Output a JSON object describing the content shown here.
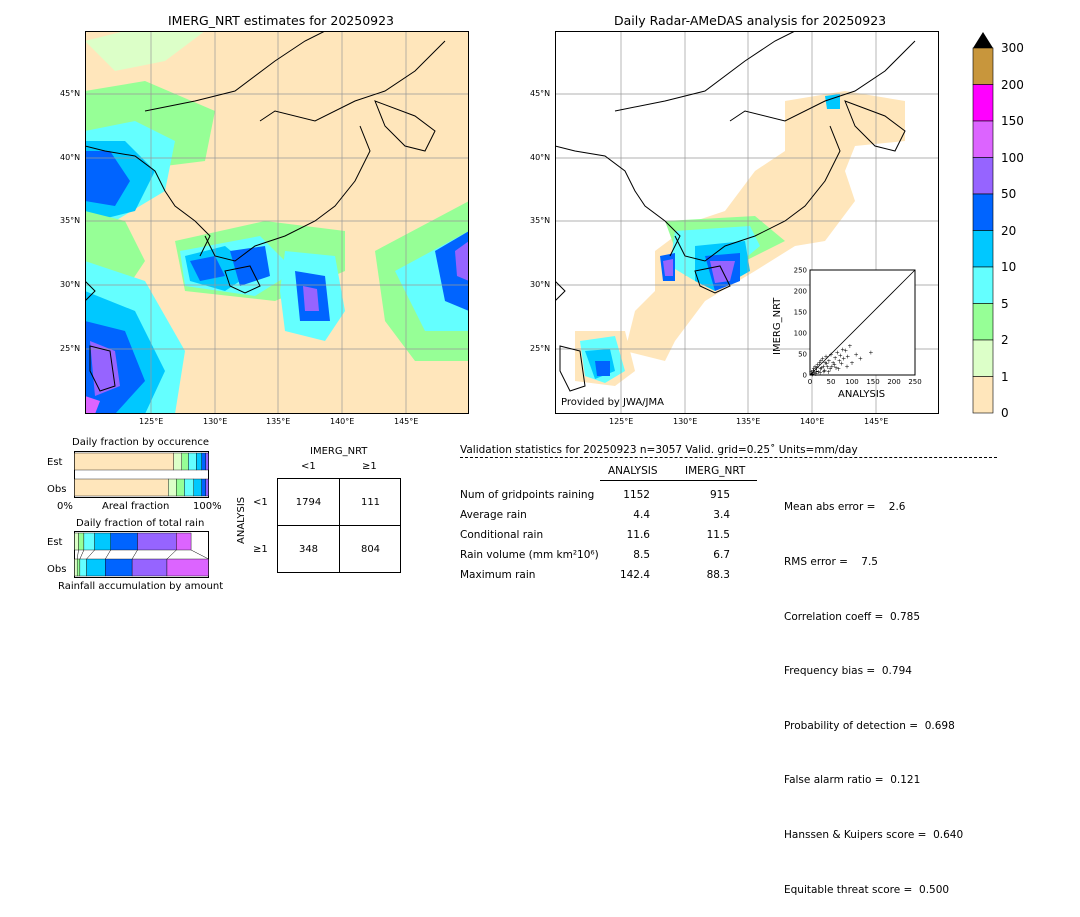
{
  "left_map": {
    "title": "IMERG_NRT estimates for 20250923",
    "lat_labels": [
      "45°N",
      "40°N",
      "35°N",
      "30°N",
      "25°N"
    ],
    "lon_labels": [
      "125°E",
      "130°E",
      "135°E",
      "140°E",
      "145°E"
    ]
  },
  "right_map": {
    "title": "Daily Radar-AMeDAS analysis for 20250923",
    "lat_labels": [
      "45°N",
      "40°N",
      "35°N",
      "30°N",
      "25°N"
    ],
    "lon_labels": [
      "125°E",
      "130°E",
      "135°E",
      "140°E",
      "145°E"
    ],
    "credit": "Provided by JWA/JMA"
  },
  "colorbar": {
    "levels": [
      "300",
      "200",
      "150",
      "100",
      "50",
      "20",
      "10",
      "5",
      "2",
      "1",
      "0"
    ],
    "colors": [
      "#c8963c",
      "#ff00ff",
      "#dc64ff",
      "#9664ff",
      "#0064ff",
      "#00c8ff",
      "#64ffff",
      "#96ff96",
      "#dcffc8",
      "#ffe6bb"
    ]
  },
  "scatter": {
    "xlabel": "ANALYSIS",
    "ylabel": "IMERG_NRT",
    "ticks": [
      "0",
      "50",
      "100",
      "150",
      "200",
      "250"
    ]
  },
  "fraction_occurrence": {
    "title": "Daily fraction by occurence",
    "rows": [
      "Est",
      "Obs"
    ],
    "axis_left": "0%",
    "axis_mid": "Areal fraction",
    "axis_right": "100%"
  },
  "fraction_total": {
    "title": "Daily fraction of total rain",
    "rows": [
      "Est",
      "Obs"
    ],
    "caption": "Rainfall accumulation by amount"
  },
  "contingency": {
    "header": "IMERG_NRT",
    "col_labels": [
      "<1",
      "≥1"
    ],
    "row_axis": "ANALYSIS",
    "row_labels": [
      "<1",
      "≥1"
    ],
    "cells": [
      [
        "1794",
        "111"
      ],
      [
        "348",
        "804"
      ]
    ]
  },
  "validation": {
    "header": "Validation statistics for 20250923  n=3057 Valid. grid=0.25˚ Units=mm/day",
    "col_analysis": "ANALYSIS",
    "col_imerg": "IMERG_NRT",
    "rows": [
      {
        "label": "Num of gridpoints raining",
        "analysis": "1152",
        "imerg": "915"
      },
      {
        "label": "Average rain",
        "analysis": "4.4",
        "imerg": "3.4"
      },
      {
        "label": "Conditional rain",
        "analysis": "11.6",
        "imerg": "11.5"
      },
      {
        "label": "Rain volume (mm km²10⁶)",
        "analysis": "8.5",
        "imerg": "6.7"
      },
      {
        "label": "Maximum rain",
        "analysis": "142.4",
        "imerg": "88.3"
      }
    ],
    "scores": [
      "Mean abs error =    2.6",
      "RMS error =    7.5",
      "Correlation coeff =  0.785",
      "Frequency bias =  0.794",
      "Probability of detection =  0.698",
      "False alarm ratio =  0.121",
      "Hanssen & Kuipers score =  0.640",
      "Equitable threat score =  0.500"
    ]
  },
  "chart_data": [
    {
      "type": "heatmap",
      "title": "IMERG_NRT estimates for 20250923",
      "x_ticks": [
        "125°E",
        "130°E",
        "135°E",
        "140°E",
        "145°E"
      ],
      "y_ticks": [
        "45°N",
        "40°N",
        "35°N",
        "30°N",
        "25°N"
      ],
      "legend_levels_mm": [
        0,
        1,
        2,
        5,
        10,
        20,
        50,
        100,
        150,
        200,
        300
      ]
    },
    {
      "type": "heatmap",
      "title": "Daily Radar-AMeDAS analysis for 20250923",
      "x_ticks": [
        "125°E",
        "130°E",
        "135°E",
        "140°E",
        "145°E"
      ],
      "y_ticks": [
        "45°N",
        "40°N",
        "35°N",
        "30°N",
        "25°N"
      ],
      "legend_levels_mm": [
        0,
        1,
        2,
        5,
        10,
        20,
        50,
        100,
        150,
        200,
        300
      ]
    },
    {
      "type": "scatter",
      "xlabel": "ANALYSIS",
      "ylabel": "IMERG_NRT",
      "xlim": [
        0,
        250
      ],
      "ylim": [
        0,
        250
      ],
      "points": [
        [
          5,
          3
        ],
        [
          8,
          12
        ],
        [
          10,
          6
        ],
        [
          12,
          20
        ],
        [
          15,
          10
        ],
        [
          18,
          25
        ],
        [
          20,
          8
        ],
        [
          22,
          30
        ],
        [
          25,
          15
        ],
        [
          28,
          18
        ],
        [
          30,
          40
        ],
        [
          32,
          22
        ],
        [
          35,
          12
        ],
        [
          38,
          45
        ],
        [
          40,
          28
        ],
        [
          42,
          20
        ],
        [
          45,
          35
        ],
        [
          48,
          15
        ],
        [
          50,
          50
        ],
        [
          55,
          30
        ],
        [
          58,
          25
        ],
        [
          60,
          42
        ],
        [
          62,
          18
        ],
        [
          65,
          55
        ],
        [
          70,
          35
        ],
        [
          72,
          48
        ],
        [
          75,
          28
        ],
        [
          80,
          40
        ],
        [
          85,
          60
        ],
        [
          90,
          45
        ],
        [
          95,
          70
        ],
        [
          100,
          30
        ],
        [
          110,
          50
        ],
        [
          120,
          40
        ],
        [
          145,
          55
        ],
        [
          3,
          8
        ],
        [
          6,
          2
        ],
        [
          9,
          15
        ],
        [
          14,
          4
        ],
        [
          16,
          18
        ],
        [
          24,
          6
        ],
        [
          26,
          35
        ],
        [
          33,
          10
        ],
        [
          36,
          30
        ],
        [
          44,
          8
        ],
        [
          52,
          22
        ],
        [
          68,
          15
        ],
        [
          78,
          62
        ],
        [
          88,
          22
        ]
      ]
    },
    {
      "type": "bar",
      "title": "Daily fraction by occurence",
      "series": [
        {
          "name": "Est",
          "values": [
            0.74,
            0.06,
            0.05,
            0.06,
            0.04,
            0.03,
            0.02
          ]
        },
        {
          "name": "Obs",
          "values": [
            0.7,
            0.06,
            0.06,
            0.07,
            0.06,
            0.03,
            0.02
          ]
        }
      ]
    },
    {
      "type": "bar",
      "title": "Daily fraction of total rain",
      "series": [
        {
          "name": "Est",
          "values": [
            0.03,
            0.04,
            0.08,
            0.12,
            0.2,
            0.29,
            0.11
          ]
        },
        {
          "name": "Obs",
          "values": [
            0.02,
            0.02,
            0.05,
            0.14,
            0.2,
            0.26,
            0.31
          ]
        }
      ]
    },
    {
      "type": "table",
      "columns": [
        "<1",
        "≥1"
      ],
      "rows": [
        [
          "1794",
          "111"
        ],
        [
          "348",
          "804"
        ]
      ]
    }
  ]
}
